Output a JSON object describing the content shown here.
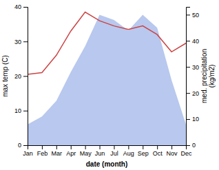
{
  "chart_data": {
    "type": "line",
    "categories": [
      "Jan",
      "Feb",
      "Mar",
      "Apr",
      "May",
      "Jun",
      "Jul",
      "Aug",
      "Sep",
      "Oct",
      "Nov",
      "Dec"
    ],
    "series": [
      {
        "type": "area",
        "axis": "y2",
        "color": "#b8c8ee",
        "values": [
          8,
          11,
          17,
          28,
          38,
          50,
          48,
          44,
          50,
          45,
          25,
          8
        ]
      },
      {
        "type": "line",
        "color": "#cc4444",
        "values": [
          20.5,
          21.0,
          26.0,
          33.0,
          38.5,
          36.0,
          34.5,
          33.5,
          34.5,
          32.0,
          27.0,
          29.5
        ]
      }
    ],
    "x_label": "date (month)",
    "y_label": "max temp (C)",
    "y2_label": "med. precipitation\n(kg/m2)",
    "ylim": [
      0,
      40
    ],
    "yticks": [
      0,
      10,
      20,
      30,
      40
    ],
    "y2lim": [
      0,
      53
    ],
    "y2ticks": [
      0,
      10,
      20,
      30,
      40,
      50
    ],
    "grid": false
  }
}
